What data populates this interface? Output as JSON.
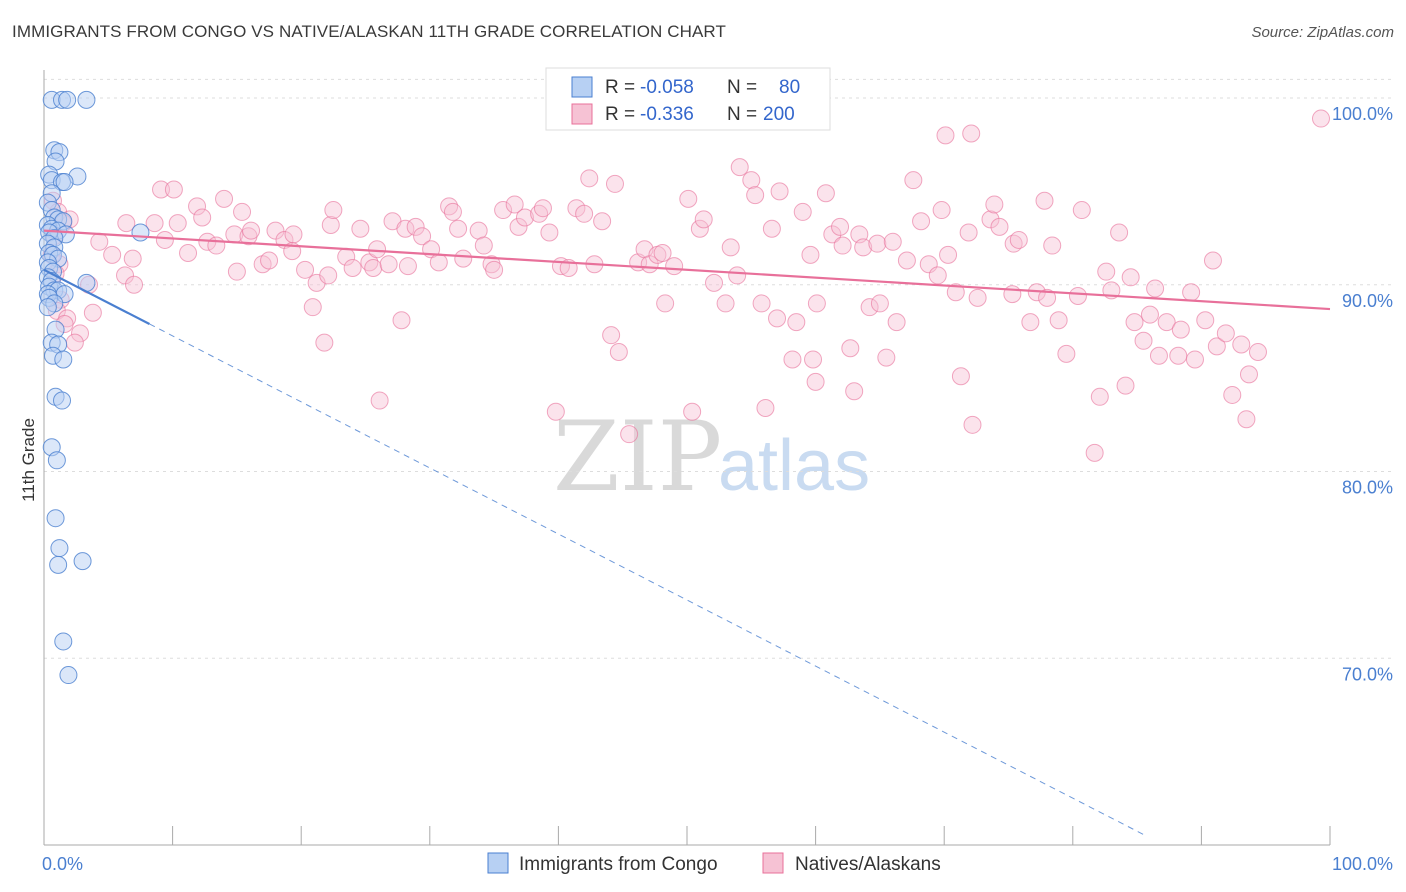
{
  "title": "IMMIGRANTS FROM CONGO VS NATIVE/ALASKAN 11TH GRADE CORRELATION CHART",
  "source": "Source: ZipAtlas.com",
  "watermark": {
    "zip": "ZIP",
    "atlas": "atlas"
  },
  "colors": {
    "blue": "#4a7fd0",
    "blue_fill": "#b7d0f3",
    "pink": "#e8709a",
    "pink_fill": "#f6c2d4",
    "grid": "#dddddd"
  },
  "legend": {
    "rows": [
      {
        "r_label": "R =",
        "r_value": "-0.058",
        "n_label": "N =",
        "n_value": "80"
      },
      {
        "r_label": "R =",
        "r_value": "-0.336",
        "n_label": "N =",
        "n_value": "200"
      }
    ]
  },
  "chart_data": {
    "type": "scatter",
    "ylabel": "11th Grade",
    "xlim": [
      0,
      100
    ],
    "ylim": [
      60,
      101.5
    ],
    "x_tick_labels": [
      "0.0%",
      "100.0%"
    ],
    "y_ticks": [
      70,
      80,
      90,
      100
    ],
    "y_tick_labels": [
      "70.0%",
      "80.0%",
      "90.0%",
      "100.0%"
    ],
    "series": [
      {
        "name": "Immigrants from Congo",
        "color": "blue",
        "points": [
          [
            0.6,
            99.9
          ],
          [
            1.4,
            99.9
          ],
          [
            1.8,
            99.9
          ],
          [
            3.3,
            99.9
          ],
          [
            0.8,
            97.2
          ],
          [
            1.2,
            97.1
          ],
          [
            0.9,
            96.6
          ],
          [
            0.4,
            95.9
          ],
          [
            2.6,
            95.8
          ],
          [
            0.6,
            95.6
          ],
          [
            1.4,
            95.5
          ],
          [
            1.6,
            95.5
          ],
          [
            0.6,
            94.9
          ],
          [
            0.3,
            94.4
          ],
          [
            0.6,
            94.0
          ],
          [
            0.8,
            93.6
          ],
          [
            1.1,
            93.5
          ],
          [
            1.5,
            93.4
          ],
          [
            0.3,
            93.2
          ],
          [
            0.6,
            93.0
          ],
          [
            1.1,
            92.9
          ],
          [
            0.4,
            92.8
          ],
          [
            1.7,
            92.7
          ],
          [
            0.8,
            92.5
          ],
          [
            0.3,
            92.2
          ],
          [
            0.8,
            92.0
          ],
          [
            0.4,
            91.7
          ],
          [
            0.7,
            91.6
          ],
          [
            1.1,
            91.4
          ],
          [
            0.3,
            91.2
          ],
          [
            0.4,
            90.9
          ],
          [
            0.7,
            90.7
          ],
          [
            0.3,
            90.4
          ],
          [
            0.6,
            90.2
          ],
          [
            3.3,
            90.1
          ],
          [
            0.4,
            89.9
          ],
          [
            0.8,
            89.7
          ],
          [
            1.1,
            89.7
          ],
          [
            0.3,
            89.5
          ],
          [
            1.6,
            89.5
          ],
          [
            0.4,
            89.3
          ],
          [
            0.8,
            89.0
          ],
          [
            0.3,
            88.8
          ],
          [
            0.9,
            87.6
          ],
          [
            0.6,
            86.9
          ],
          [
            1.1,
            86.8
          ],
          [
            0.7,
            86.2
          ],
          [
            1.5,
            86.0
          ],
          [
            0.9,
            84.0
          ],
          [
            1.4,
            83.8
          ],
          [
            0.6,
            81.3
          ],
          [
            1.0,
            80.6
          ],
          [
            0.9,
            77.5
          ],
          [
            1.2,
            75.9
          ],
          [
            1.1,
            75.0
          ],
          [
            3.0,
            75.2
          ],
          [
            1.5,
            70.9
          ],
          [
            1.9,
            69.1
          ],
          [
            7.5,
            92.8
          ]
        ],
        "trend": {
          "x0": 0,
          "y0": 90.8,
          "x1": 8.2,
          "y1": 87.9
        }
      },
      {
        "name": "Natives/Alaskans",
        "color": "pink",
        "points": [
          [
            0.7,
            94.5
          ],
          [
            1.1,
            93.9
          ],
          [
            1.5,
            93.3
          ],
          [
            2.0,
            93.5
          ],
          [
            0.8,
            92.6
          ],
          [
            0.6,
            91.6
          ],
          [
            1.2,
            91.1
          ],
          [
            0.9,
            90.6
          ],
          [
            3.5,
            90.0
          ],
          [
            1.3,
            89.2
          ],
          [
            1.0,
            88.6
          ],
          [
            1.8,
            88.2
          ],
          [
            1.6,
            87.9
          ],
          [
            2.8,
            87.4
          ],
          [
            4.3,
            92.3
          ],
          [
            5.3,
            91.6
          ],
          [
            6.9,
            91.4
          ],
          [
            6.3,
            90.5
          ],
          [
            7.0,
            90.0
          ],
          [
            3.8,
            88.5
          ],
          [
            2.4,
            86.9
          ],
          [
            6.4,
            93.3
          ],
          [
            8.6,
            93.3
          ],
          [
            9.4,
            92.4
          ],
          [
            9.1,
            95.1
          ],
          [
            10.1,
            95.1
          ],
          [
            10.4,
            93.3
          ],
          [
            11.2,
            91.7
          ],
          [
            11.9,
            94.2
          ],
          [
            12.3,
            93.6
          ],
          [
            12.7,
            92.3
          ],
          [
            13.4,
            92.1
          ],
          [
            14.0,
            94.6
          ],
          [
            14.8,
            92.7
          ],
          [
            15.0,
            90.7
          ],
          [
            15.4,
            93.9
          ],
          [
            15.9,
            92.6
          ],
          [
            16.1,
            92.9
          ],
          [
            17.0,
            91.1
          ],
          [
            17.5,
            91.3
          ],
          [
            18.0,
            92.9
          ],
          [
            18.7,
            92.4
          ],
          [
            19.4,
            92.7
          ],
          [
            19.3,
            91.8
          ],
          [
            20.3,
            90.8
          ],
          [
            20.9,
            88.8
          ],
          [
            21.2,
            90.1
          ],
          [
            21.8,
            86.9
          ],
          [
            22.1,
            90.5
          ],
          [
            22.3,
            93.2
          ],
          [
            22.5,
            94.0
          ],
          [
            23.5,
            91.5
          ],
          [
            24.0,
            90.9
          ],
          [
            24.6,
            93.0
          ],
          [
            25.3,
            91.2
          ],
          [
            25.6,
            90.9
          ],
          [
            25.9,
            91.9
          ],
          [
            26.1,
            83.8
          ],
          [
            26.8,
            91.1
          ],
          [
            27.1,
            93.4
          ],
          [
            27.8,
            88.1
          ],
          [
            28.1,
            93.0
          ],
          [
            28.3,
            91.0
          ],
          [
            28.9,
            93.1
          ],
          [
            29.4,
            92.6
          ],
          [
            30.1,
            91.9
          ],
          [
            30.7,
            91.2
          ],
          [
            31.5,
            94.2
          ],
          [
            31.8,
            93.9
          ],
          [
            32.2,
            93.0
          ],
          [
            32.6,
            91.4
          ],
          [
            33.8,
            92.9
          ],
          [
            34.2,
            92.1
          ],
          [
            34.8,
            91.1
          ],
          [
            35.0,
            90.8
          ],
          [
            35.7,
            94.0
          ],
          [
            36.6,
            94.3
          ],
          [
            36.9,
            93.1
          ],
          [
            37.4,
            93.6
          ],
          [
            38.5,
            93.8
          ],
          [
            38.8,
            94.1
          ],
          [
            39.3,
            92.8
          ],
          [
            39.8,
            83.2
          ],
          [
            40.2,
            91.0
          ],
          [
            40.8,
            90.9
          ],
          [
            41.4,
            94.1
          ],
          [
            42.0,
            93.8
          ],
          [
            42.4,
            95.7
          ],
          [
            42.8,
            91.1
          ],
          [
            43.4,
            93.4
          ],
          [
            44.1,
            87.3
          ],
          [
            44.4,
            95.4
          ],
          [
            44.7,
            86.4
          ],
          [
            45.5,
            82.0
          ],
          [
            46.2,
            91.2
          ],
          [
            46.7,
            91.9
          ],
          [
            47.1,
            91.1
          ],
          [
            47.7,
            91.6
          ],
          [
            48.1,
            91.7
          ],
          [
            48.3,
            89.0
          ],
          [
            49.0,
            91.0
          ],
          [
            50.1,
            94.6
          ],
          [
            50.4,
            83.2
          ],
          [
            51.0,
            93.0
          ],
          [
            51.3,
            93.5
          ],
          [
            52.1,
            90.1
          ],
          [
            53.0,
            89.0
          ],
          [
            53.4,
            92.0
          ],
          [
            53.9,
            90.5
          ],
          [
            54.1,
            96.3
          ],
          [
            55.0,
            95.6
          ],
          [
            55.3,
            94.8
          ],
          [
            55.8,
            89.0
          ],
          [
            56.1,
            83.4
          ],
          [
            56.6,
            93.0
          ],
          [
            57.0,
            88.2
          ],
          [
            57.2,
            95.0
          ],
          [
            58.2,
            86.0
          ],
          [
            58.5,
            88.0
          ],
          [
            59.0,
            93.9
          ],
          [
            59.6,
            91.6
          ],
          [
            59.8,
            86.0
          ],
          [
            60.0,
            84.8
          ],
          [
            60.1,
            89.0
          ],
          [
            60.8,
            94.9
          ],
          [
            61.3,
            92.7
          ],
          [
            61.9,
            93.1
          ],
          [
            62.1,
            92.1
          ],
          [
            62.7,
            86.6
          ],
          [
            63.0,
            84.3
          ],
          [
            63.4,
            92.7
          ],
          [
            63.7,
            92.0
          ],
          [
            64.2,
            88.8
          ],
          [
            64.8,
            92.2
          ],
          [
            65.0,
            89.0
          ],
          [
            65.5,
            86.1
          ],
          [
            66.0,
            92.3
          ],
          [
            66.3,
            88.0
          ],
          [
            67.1,
            91.3
          ],
          [
            67.6,
            95.6
          ],
          [
            68.2,
            93.4
          ],
          [
            68.8,
            91.1
          ],
          [
            69.5,
            90.5
          ],
          [
            69.8,
            94.0
          ],
          [
            70.3,
            91.6
          ],
          [
            70.9,
            89.6
          ],
          [
            71.3,
            85.1
          ],
          [
            71.9,
            92.8
          ],
          [
            72.2,
            82.5
          ],
          [
            72.6,
            89.3
          ],
          [
            73.6,
            93.5
          ],
          [
            73.9,
            94.3
          ],
          [
            74.3,
            93.1
          ],
          [
            75.3,
            89.5
          ],
          [
            75.4,
            92.2
          ],
          [
            75.8,
            92.4
          ],
          [
            76.7,
            88.0
          ],
          [
            77.2,
            89.6
          ],
          [
            77.8,
            94.5
          ],
          [
            78.0,
            89.3
          ],
          [
            78.4,
            92.1
          ],
          [
            78.9,
            88.1
          ],
          [
            79.5,
            86.3
          ],
          [
            80.4,
            89.4
          ],
          [
            80.7,
            94.0
          ],
          [
            81.7,
            81.0
          ],
          [
            82.1,
            84.0
          ],
          [
            82.6,
            90.7
          ],
          [
            83.0,
            89.7
          ],
          [
            83.6,
            92.8
          ],
          [
            84.1,
            84.6
          ],
          [
            84.5,
            90.4
          ],
          [
            84.8,
            88.0
          ],
          [
            85.5,
            87.0
          ],
          [
            86.0,
            88.4
          ],
          [
            86.4,
            89.8
          ],
          [
            86.7,
            86.2
          ],
          [
            87.3,
            88.0
          ],
          [
            88.2,
            86.2
          ],
          [
            88.4,
            87.6
          ],
          [
            89.2,
            89.6
          ],
          [
            89.5,
            86.0
          ],
          [
            90.3,
            88.1
          ],
          [
            90.9,
            91.3
          ],
          [
            91.2,
            86.7
          ],
          [
            91.9,
            87.4
          ],
          [
            92.4,
            84.1
          ],
          [
            93.1,
            86.8
          ],
          [
            93.5,
            82.8
          ],
          [
            93.7,
            85.2
          ],
          [
            94.4,
            86.4
          ],
          [
            99.3,
            98.9
          ],
          [
            70.1,
            98.0
          ],
          [
            72.1,
            98.1
          ]
        ],
        "trend": {
          "x0": 0,
          "y0": 92.9,
          "x1": 100,
          "y1": 88.7
        }
      }
    ],
    "legend_position": "top-center"
  }
}
